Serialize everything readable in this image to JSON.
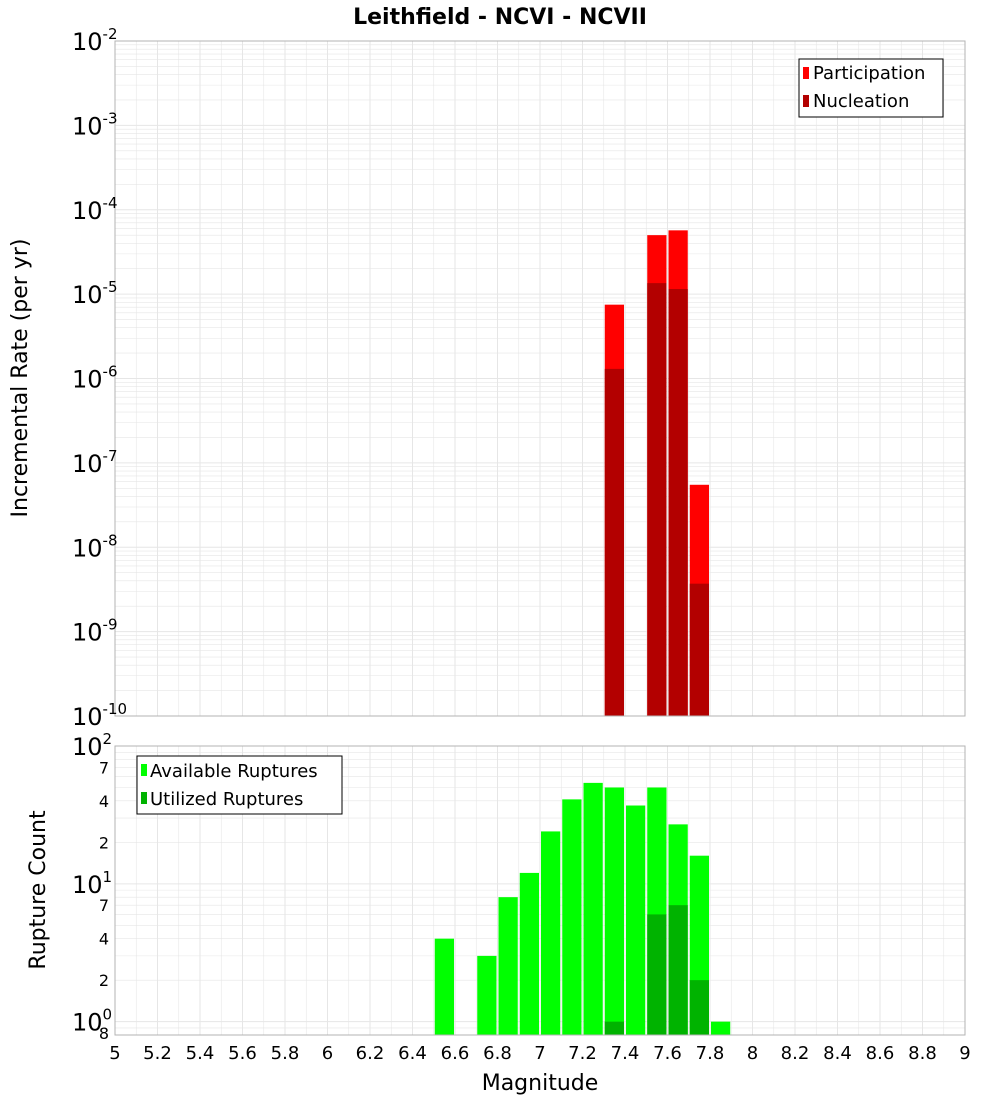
{
  "title": "Leithfield - NCVI - NCVII",
  "colors": {
    "participation": "#ff0000",
    "nucleation": "#b30000",
    "available": "#00ff00",
    "utilized": "#00b300",
    "grid": "#e6e6e6",
    "frame": "#b3b3b3"
  },
  "chart_data": [
    {
      "type": "bar",
      "name": "incremental-rate",
      "ylabel": "Incremental Rate (per yr)",
      "yscale": "log",
      "ylim": [
        1e-10,
        0.01
      ],
      "xlim": [
        5,
        9
      ],
      "bin_width": 0.1,
      "y_tick_labels": [
        {
          "exp": -10,
          "base": "10",
          "sup": "-10"
        },
        {
          "exp": -9,
          "base": "10",
          "sup": "-9"
        },
        {
          "exp": -8,
          "base": "10",
          "sup": "-8"
        },
        {
          "exp": -7,
          "base": "10",
          "sup": "-7"
        },
        {
          "exp": -6,
          "base": "10",
          "sup": "-6"
        },
        {
          "exp": -5,
          "base": "10",
          "sup": "-5"
        },
        {
          "exp": -4,
          "base": "10",
          "sup": "-4"
        },
        {
          "exp": -3,
          "base": "10",
          "sup": "-3"
        },
        {
          "exp": -2,
          "base": "10",
          "sup": "-2"
        }
      ],
      "legend": {
        "position": "top-right",
        "entries": [
          {
            "label": "Participation",
            "color": "#ff0000"
          },
          {
            "label": "Nucleation",
            "color": "#b30000"
          }
        ]
      },
      "series": [
        {
          "name": "Participation",
          "x": [
            7.35,
            7.55,
            7.65,
            7.75
          ],
          "values": [
            7.5e-06,
            5e-05,
            5.7e-05,
            5.5e-08
          ]
        },
        {
          "name": "Nucleation",
          "x": [
            7.35,
            7.55,
            7.65,
            7.75
          ],
          "values": [
            1.3e-06,
            1.35e-05,
            1.15e-05,
            3.7e-09
          ]
        }
      ]
    },
    {
      "type": "bar",
      "name": "rupture-count",
      "ylabel": "Rupture Count",
      "xlabel": "Magnitude",
      "yscale": "log",
      "ylim": [
        0.8,
        100
      ],
      "xlim": [
        5,
        9
      ],
      "bin_width": 0.1,
      "x_ticks": [
        "5",
        "5.2",
        "5.4",
        "5.6",
        "5.8",
        "6",
        "6.2",
        "6.4",
        "6.6",
        "6.8",
        "7",
        "7.2",
        "7.4",
        "7.6",
        "7.8",
        "8",
        "8.2",
        "8.4",
        "8.6",
        "8.8",
        "9"
      ],
      "y_major_labels": [
        {
          "value": 1,
          "base": "10",
          "sup": "0"
        },
        {
          "value": 10,
          "base": "10",
          "sup": "1"
        },
        {
          "value": 100,
          "base": "10",
          "sup": "2"
        }
      ],
      "y_minor_labels": [
        {
          "value": 0.8,
          "label": "8"
        },
        {
          "value": 2,
          "label": "2"
        },
        {
          "value": 4,
          "label": "4"
        },
        {
          "value": 7,
          "label": "7"
        },
        {
          "value": 20,
          "label": "2"
        },
        {
          "value": 40,
          "label": "4"
        },
        {
          "value": 70,
          "label": "7"
        }
      ],
      "legend": {
        "position": "top-left",
        "entries": [
          {
            "label": "Available Ruptures",
            "color": "#00ff00"
          },
          {
            "label": "Utilized Ruptures",
            "color": "#00b300"
          }
        ]
      },
      "series": [
        {
          "name": "Available Ruptures",
          "x": [
            6.55,
            6.75,
            6.85,
            6.95,
            7.05,
            7.15,
            7.25,
            7.35,
            7.45,
            7.55,
            7.65,
            7.75,
            7.85
          ],
          "values": [
            4,
            3,
            8,
            12,
            24,
            41,
            54,
            50,
            37,
            50,
            27,
            16,
            1
          ]
        },
        {
          "name": "Utilized Ruptures",
          "x": [
            7.35,
            7.55,
            7.65,
            7.75
          ],
          "values": [
            1,
            6,
            7,
            2
          ]
        }
      ]
    }
  ]
}
